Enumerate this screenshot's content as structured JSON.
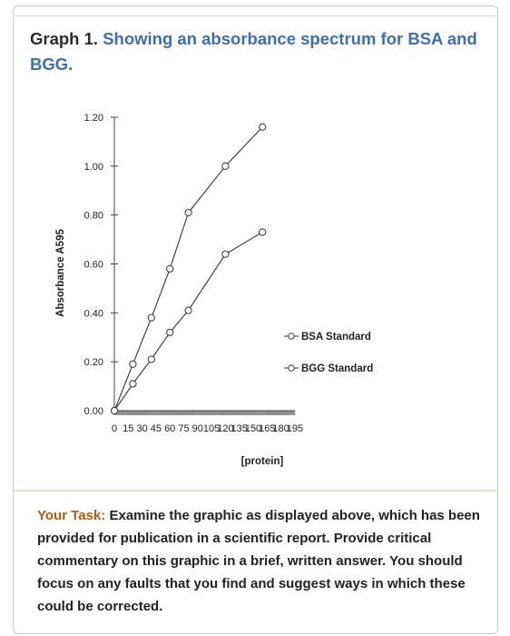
{
  "header": {
    "graph_label": "Graph 1.",
    "graph_title": "Showing an absorbance spectrum for BSA and BGG."
  },
  "chart_data": {
    "type": "line",
    "x": [
      0,
      15,
      30,
      45,
      60,
      75,
      90,
      105,
      120,
      135,
      150,
      165,
      180,
      195
    ],
    "x_tick_labels": [
      "0",
      "15",
      "30",
      "45",
      "60",
      "75",
      "90",
      "105",
      "120",
      "135",
      "150",
      "165",
      "180",
      "195"
    ],
    "y_tick_labels": [
      "0.00",
      "0.20",
      "0.40",
      "0.60",
      "0.80",
      "1.00",
      "1.20"
    ],
    "xlabel": "[protein]",
    "ylabel": "Absorbance A595",
    "ylim": [
      0,
      1.2
    ],
    "series": [
      {
        "name": "BSA Standard",
        "points": [
          [
            0,
            0.0
          ],
          [
            20,
            0.19
          ],
          [
            40,
            0.38
          ],
          [
            60,
            0.58
          ],
          [
            80,
            0.81
          ],
          [
            120,
            1.0
          ],
          [
            160,
            1.16
          ]
        ]
      },
      {
        "name": "BGG Standard",
        "points": [
          [
            0,
            0.0
          ],
          [
            20,
            0.11
          ],
          [
            40,
            0.21
          ],
          [
            60,
            0.32
          ],
          [
            80,
            0.41
          ],
          [
            120,
            0.64
          ],
          [
            160,
            0.73
          ]
        ]
      }
    ],
    "legend_position": "center-right",
    "grid": false,
    "line_color": "#444444"
  },
  "task": {
    "label": "Your Task:",
    "text": "Examine the graphic as displayed above, which has been provided for publication in a scientific report. Provide critical commentary on this graphic in a brief, written answer. You should focus on any faults that you find and suggest ways in which these could be corrected."
  }
}
